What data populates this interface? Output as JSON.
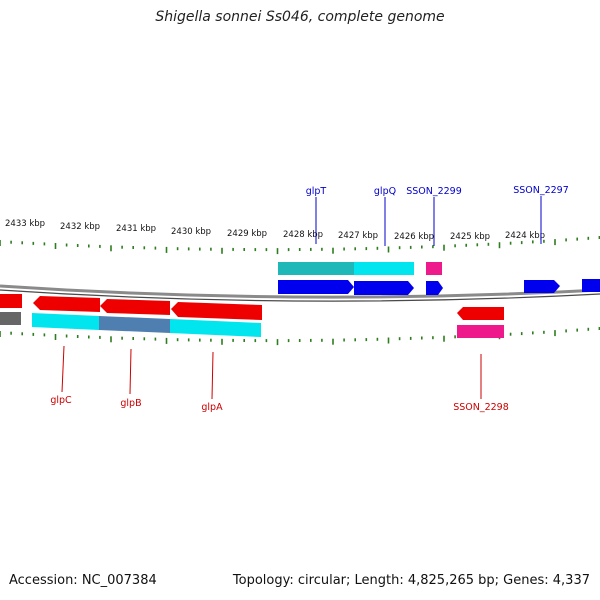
{
  "title": "Shigella sonnei Ss046, complete genome",
  "accession": "Accession: NC_007384",
  "topology": "Topology: circular; Length: 4,825,265 bp; Genes: 4,337",
  "kbp_labels": [
    "2433 kbp",
    "2432 kbp",
    "2431 kbp",
    "2430 kbp",
    "2429 kbp",
    "2428 kbp",
    "2427 kbp",
    "2426 kbp",
    "2425 kbp",
    "2424 kbp"
  ],
  "gene_labels": {
    "glpT": "glpT",
    "glpQ": "glpQ",
    "SSON_2299": "SSON_2299",
    "SSON_2297": "SSON_2297",
    "glpC": "glpC",
    "glpB": "glpB",
    "glpA": "glpA",
    "SSON_2298": "SSON_2298"
  },
  "colors": {
    "forward_gene": "#0000ee",
    "reverse_gene": "#ee0000",
    "cds_cyan": "#00e5ee",
    "cds_teal": "#1fb8b8",
    "cds_steel": "#4f7fb0",
    "rna_pink": "#ee1a8c",
    "backbone": "#8a8a8a",
    "tick": "#2e7d1e"
  }
}
